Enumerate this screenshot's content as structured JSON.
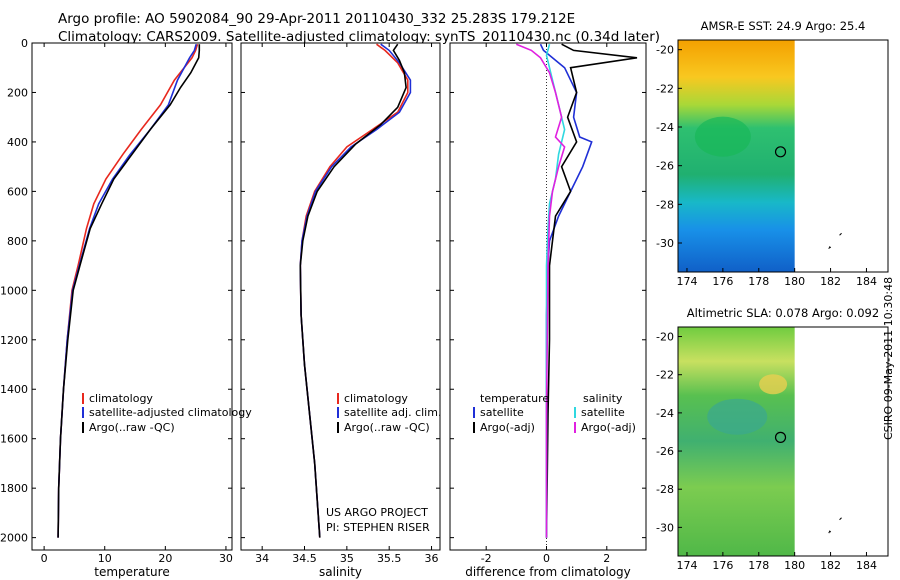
{
  "header": {
    "title_line1": "Argo profile: AO 5902084_90 29-Apr-2011 20110430_332 25.283S 179.212E",
    "title_line2": "Climatology: CARS2009. Satellite-adjusted climatology: synTS_20110430.nc (0.34d later)"
  },
  "credits": {
    "project": "US ARGO PROJECT",
    "pi": "PI: STEPHEN RISER",
    "stamp": "CSIRO 09-May-2011 10:30:48"
  },
  "colors": {
    "climatology": "#e8281e",
    "satellite": "#1f2fd6",
    "argo": "#000000",
    "sal_satellite": "#2fd8e0",
    "sal_argo": "#e020e0"
  },
  "chart_data": [
    {
      "type": "line",
      "xlabel": "temperature",
      "ylim": [
        2050,
        0
      ],
      "xlim": [
        -2,
        31
      ],
      "yticks": [
        0,
        200,
        400,
        600,
        800,
        1000,
        1200,
        1400,
        1600,
        1800,
        2000
      ],
      "xticks": [
        0,
        10,
        20,
        30
      ],
      "legend": [
        "climatology",
        "satellite-adjusted climatology",
        "Argo(..raw -QC)"
      ],
      "series": [
        {
          "name": "climatology",
          "color": "#e8281e",
          "x": [
            25.3,
            25.0,
            24.4,
            21.5,
            19.2,
            16.0,
            13.0,
            10.2,
            8.2,
            7.0,
            5.6,
            4.6,
            3.8,
            3.2,
            2.7,
            2.4,
            2.3
          ],
          "y": [
            5,
            30,
            60,
            150,
            250,
            350,
            450,
            550,
            650,
            750,
            900,
            1000,
            1200,
            1400,
            1600,
            1800,
            2000
          ]
        },
        {
          "name": "satellite-adjusted climatology",
          "color": "#1f2fd6",
          "x": [
            25.1,
            24.8,
            24.0,
            22.0,
            20.5,
            17.5,
            14.2,
            11.3,
            9.0,
            7.5,
            5.8,
            4.7,
            3.8,
            3.2,
            2.7,
            2.4,
            2.3
          ],
          "y": [
            5,
            30,
            60,
            150,
            250,
            350,
            450,
            550,
            650,
            750,
            900,
            1000,
            1200,
            1400,
            1600,
            1800,
            2000
          ]
        },
        {
          "name": "Argo(..raw -QC)",
          "color": "#000000",
          "x": [
            25.6,
            25.6,
            25.5,
            24.2,
            22.5,
            20.8,
            17.5,
            14.5,
            11.5,
            9.5,
            7.6,
            5.9,
            4.8,
            3.9,
            3.2,
            2.7,
            2.4,
            2.3
          ],
          "y": [
            5,
            30,
            60,
            120,
            180,
            250,
            350,
            450,
            550,
            650,
            750,
            900,
            1000,
            1200,
            1400,
            1600,
            1800,
            2000
          ]
        }
      ]
    },
    {
      "type": "line",
      "xlabel": "salinity",
      "ylim": [
        2050,
        0
      ],
      "xlim": [
        33.75,
        36.1
      ],
      "xticks": [
        34,
        34.5,
        35,
        35.5,
        36
      ],
      "legend": [
        "climatology",
        "satellite adj. clim.",
        "Argo(..raw -QC)"
      ],
      "series": [
        {
          "name": "climatology",
          "color": "#e8281e",
          "x": [
            35.35,
            35.45,
            35.6,
            35.72,
            35.72,
            35.6,
            35.3,
            35.0,
            34.8,
            34.62,
            34.52,
            34.47,
            34.45,
            34.46,
            34.5,
            34.56,
            34.62,
            34.66,
            34.68
          ],
          "y": [
            5,
            30,
            80,
            150,
            200,
            280,
            350,
            420,
            500,
            600,
            700,
            800,
            900,
            1100,
            1300,
            1500,
            1700,
            1900,
            2000
          ]
        },
        {
          "name": "satellite adj. clim.",
          "color": "#1f2fd6",
          "x": [
            35.4,
            35.5,
            35.62,
            35.75,
            35.75,
            35.62,
            35.35,
            35.05,
            34.82,
            34.63,
            34.53,
            34.47,
            34.45,
            34.46,
            34.5,
            34.56,
            34.62,
            34.66,
            34.68
          ],
          "y": [
            5,
            30,
            80,
            150,
            200,
            280,
            350,
            420,
            500,
            600,
            700,
            800,
            900,
            1100,
            1300,
            1500,
            1700,
            1900,
            2000
          ]
        },
        {
          "name": "Argo(..raw -QC)",
          "color": "#000000",
          "x": [
            35.6,
            35.55,
            35.62,
            35.68,
            35.7,
            35.6,
            35.4,
            35.1,
            34.85,
            34.65,
            34.54,
            34.48,
            34.45,
            34.46,
            34.5,
            34.56,
            34.62,
            34.66,
            34.68
          ],
          "y": [
            5,
            30,
            70,
            120,
            180,
            260,
            330,
            410,
            500,
            600,
            700,
            800,
            900,
            1100,
            1300,
            1500,
            1700,
            1900,
            2000
          ]
        }
      ]
    },
    {
      "type": "line",
      "xlabel": "difference from climatology",
      "ylim": [
        2050,
        0
      ],
      "xlim": [
        -3.2,
        3.3
      ],
      "xticks": [
        -2,
        0,
        2
      ],
      "legend_headers": [
        "temperature",
        "salinity"
      ],
      "legend": [
        "satellite",
        "Argo(-adj)",
        "satellite",
        "Argo(-adj)"
      ],
      "series": [
        {
          "name": "satellite",
          "group": "temperature",
          "color": "#1f2fd6",
          "x": [
            -0.2,
            -0.1,
            0.6,
            1.0,
            0.9,
            1.1,
            1.5,
            1.2,
            0.8,
            0.4,
            0.1,
            0.05,
            0.0,
            0.0,
            0.0
          ],
          "y": [
            5,
            30,
            100,
            200,
            300,
            380,
            400,
            500,
            600,
            700,
            800,
            900,
            1100,
            1500,
            2000
          ]
        },
        {
          "name": "Argo(-adj)",
          "group": "temperature",
          "color": "#000000",
          "x": [
            0.5,
            0.9,
            3.0,
            0.8,
            1.0,
            0.7,
            1.0,
            0.5,
            0.8,
            0.3,
            0.2,
            0.1,
            0.1,
            0.05,
            0.0
          ],
          "y": [
            5,
            30,
            60,
            100,
            200,
            300,
            400,
            500,
            600,
            700,
            800,
            900,
            1200,
            1500,
            2000
          ]
        },
        {
          "name": "satellite",
          "group": "salinity",
          "color": "#2fd8e0",
          "x": [
            0.1,
            0.0,
            0.2,
            0.4,
            0.6,
            0.4,
            0.3,
            0.1,
            0.05,
            0.0,
            0.0,
            0.0
          ],
          "y": [
            5,
            50,
            150,
            250,
            350,
            450,
            550,
            650,
            750,
            900,
            1500,
            2000
          ]
        },
        {
          "name": "Argo(-adj)",
          "group": "salinity",
          "color": "#e020e0",
          "x": [
            -1.0,
            -0.5,
            -0.2,
            0.1,
            0.3,
            0.5,
            0.3,
            0.6,
            0.4,
            0.2,
            0.1,
            0.05,
            0.0,
            0.0
          ],
          "y": [
            5,
            30,
            60,
            120,
            200,
            300,
            380,
            420,
            500,
            600,
            700,
            900,
            1500,
            2000
          ]
        }
      ]
    },
    {
      "type": "heatmap",
      "title": "AMSR-E SST: 24.9 Argo: 25.4",
      "xlim": [
        173.5,
        185.2
      ],
      "ylim": [
        -31.5,
        -19.5
      ],
      "xticks": [
        174,
        176,
        178,
        180,
        182,
        184
      ],
      "yticks": [
        -20,
        -22,
        -24,
        -26,
        -28,
        -30
      ],
      "marker": {
        "lon": 179.212,
        "lat": -25.283
      }
    },
    {
      "type": "heatmap",
      "title": "Altimetric SLA: 0.078 Argo: 0.092",
      "xlim": [
        173.5,
        185.2
      ],
      "ylim": [
        -31.5,
        -19.5
      ],
      "xticks": [
        174,
        176,
        178,
        180,
        182,
        184
      ],
      "yticks": [
        -20,
        -22,
        -24,
        -26,
        -28,
        -30
      ],
      "marker": {
        "lon": 179.212,
        "lat": -25.283
      }
    }
  ]
}
